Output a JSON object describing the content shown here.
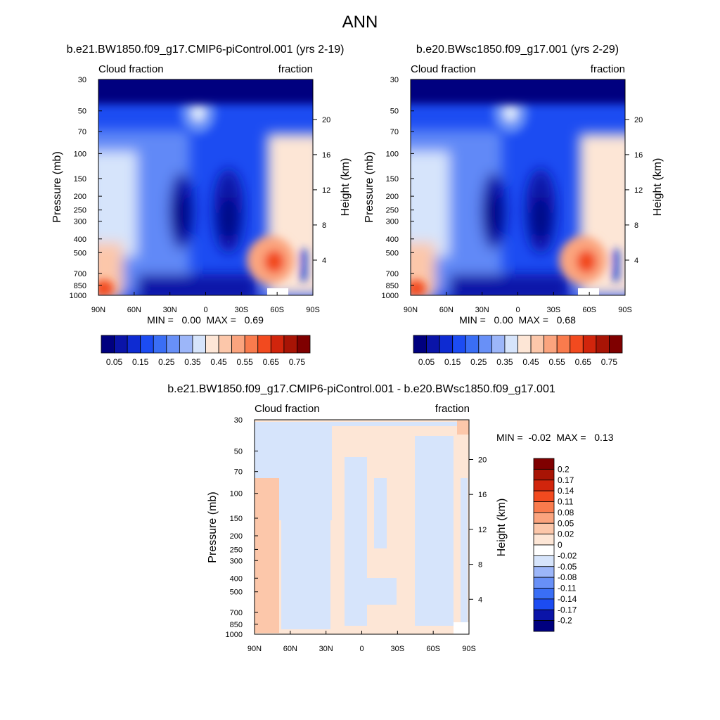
{
  "title": "ANN",
  "chart_data": [
    {
      "type": "heatmap",
      "title": "b.e21.BW1850.f09_g17.CMIP6-piControl.001 (yrs 2-19)",
      "left_label": "Cloud fraction",
      "right_label": "fraction",
      "ylabel": "Pressure (mb)",
      "y2label": "Height (km)",
      "x_ticks": [
        "90N",
        "60N",
        "30N",
        "0",
        "30S",
        "60S",
        "90S"
      ],
      "y_ticks": [
        "30",
        "50",
        "70",
        "100",
        "150",
        "200",
        "250",
        "300",
        "400",
        "500",
        "700",
        "850",
        "1000"
      ],
      "y_tick_values": [
        30,
        50,
        70,
        100,
        150,
        200,
        250,
        300,
        400,
        500,
        700,
        850,
        1000
      ],
      "y2_ticks": [
        "20",
        "16",
        "12",
        "8",
        "4"
      ],
      "y2_tick_values": [
        20,
        16,
        12,
        8,
        4
      ],
      "min_max_text": "MIN =   0.00  MAX =   0.69",
      "min": 0.0,
      "max": 0.69,
      "colorbar_labels": [
        "0.05",
        "0.15",
        "0.25",
        "0.35",
        "0.45",
        "0.55",
        "0.65",
        "0.75"
      ],
      "colorbar_levels": [
        0.05,
        0.1,
        0.15,
        0.2,
        0.25,
        0.3,
        0.35,
        0.4,
        0.45,
        0.5,
        0.55,
        0.6,
        0.65,
        0.7,
        0.75
      ]
    },
    {
      "type": "heatmap",
      "title": "b.e20.BWsc1850.f09_g17.001 (yrs 2-29)",
      "left_label": "Cloud fraction",
      "right_label": "fraction",
      "ylabel": "Pressure (mb)",
      "y2label": "Height (km)",
      "x_ticks": [
        "90N",
        "60N",
        "30N",
        "0",
        "30S",
        "60S",
        "90S"
      ],
      "y_ticks": [
        "30",
        "50",
        "70",
        "100",
        "150",
        "200",
        "250",
        "300",
        "400",
        "500",
        "700",
        "850",
        "1000"
      ],
      "y_tick_values": [
        30,
        50,
        70,
        100,
        150,
        200,
        250,
        300,
        400,
        500,
        700,
        850,
        1000
      ],
      "y2_ticks": [
        "20",
        "16",
        "12",
        "8",
        "4"
      ],
      "y2_tick_values": [
        20,
        16,
        12,
        8,
        4
      ],
      "min_max_text": "MIN =   0.00  MAX =   0.68",
      "min": 0.0,
      "max": 0.68,
      "colorbar_labels": [
        "0.05",
        "0.15",
        "0.25",
        "0.35",
        "0.45",
        "0.55",
        "0.65",
        "0.75"
      ],
      "colorbar_levels": [
        0.05,
        0.1,
        0.15,
        0.2,
        0.25,
        0.3,
        0.35,
        0.4,
        0.45,
        0.5,
        0.55,
        0.6,
        0.65,
        0.7,
        0.75
      ]
    },
    {
      "type": "heatmap",
      "title": "b.e21.BW1850.f09_g17.CMIP6-piControl.001 - b.e20.BWsc1850.f09_g17.001",
      "left_label": "Cloud fraction",
      "right_label": "fraction",
      "ylabel": "Pressure (mb)",
      "y2label": "Height (km)",
      "x_ticks": [
        "90N",
        "60N",
        "30N",
        "0",
        "30S",
        "60S",
        "90S"
      ],
      "y_ticks": [
        "30",
        "50",
        "70",
        "100",
        "150",
        "200",
        "250",
        "300",
        "400",
        "500",
        "700",
        "850",
        "1000"
      ],
      "y_tick_values": [
        30,
        50,
        70,
        100,
        150,
        200,
        250,
        300,
        400,
        500,
        700,
        850,
        1000
      ],
      "y2_ticks": [
        "20",
        "16",
        "12",
        "8",
        "4"
      ],
      "y2_tick_values": [
        20,
        16,
        12,
        8,
        4
      ],
      "min_max_text": "MIN =  -0.02  MAX =   0.13",
      "min": -0.02,
      "max": 0.13,
      "colorbar_labels": [
        "0.2",
        "0.17",
        "0.14",
        "0.11",
        "0.08",
        "0.05",
        "0.02",
        "0",
        "-0.02",
        "-0.05",
        "-0.08",
        "-0.11",
        "-0.14",
        "-0.17",
        "-0.2"
      ],
      "colorbar_levels": [
        0.2,
        0.17,
        0.14,
        0.11,
        0.08,
        0.05,
        0.02,
        0,
        -0.02,
        -0.05,
        -0.08,
        -0.11,
        -0.14,
        -0.17,
        -0.2
      ]
    }
  ],
  "colors": {
    "seq": [
      "#00007f",
      "#0a14a8",
      "#0e2bd2",
      "#1c4cf2",
      "#3a6ef5",
      "#6890f7",
      "#9cb6f9",
      "#d6e4fb",
      "#fde6d6",
      "#fcc7aa",
      "#fba47e",
      "#f97b4d",
      "#f24a1f",
      "#d1250c",
      "#a81405",
      "#7f0000"
    ],
    "diff": [
      "#7f0000",
      "#a81405",
      "#d1250c",
      "#f24a1f",
      "#f97b4d",
      "#fba47e",
      "#fcc7aa",
      "#fde6d6",
      "#ffffff",
      "#d6e4fb",
      "#9cb6f9",
      "#6890f7",
      "#3a6ef5",
      "#1c4cf2",
      "#0a14a8",
      "#00007f"
    ]
  }
}
